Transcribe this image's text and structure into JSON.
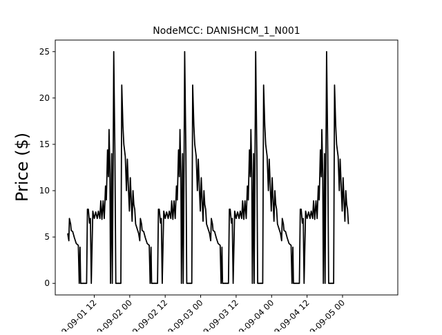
{
  "chart_data": {
    "type": "line",
    "title": "NodeMCC: DANISHCM_1_N001",
    "xlabel": "",
    "ylabel": "Price ($)",
    "x_unit": "hours from 2009-09-01 00:00",
    "xlim": [
      -1.2,
      114.7
    ],
    "ylim": [
      -1.25,
      26.25
    ],
    "yticks": [
      0,
      5,
      10,
      15,
      20,
      25
    ],
    "xticks": [
      {
        "x": 12,
        "label": "2009-09-01 12"
      },
      {
        "x": 24,
        "label": "2009-09-02 00"
      },
      {
        "x": 36,
        "label": "2009-09-02 12"
      },
      {
        "x": 48,
        "label": "2009-09-03 00"
      },
      {
        "x": 60,
        "label": "2009-09-03 12"
      },
      {
        "x": 72,
        "label": "2009-09-04 00"
      },
      {
        "x": 84,
        "label": "2009-09-04 12"
      },
      {
        "x": 96,
        "label": "2009-09-05 00"
      }
    ],
    "grid": false,
    "legend": false,
    "line_color": "#000000",
    "cycle_hours": 24,
    "cycles": 4,
    "series": [
      {
        "cycle_x": [
          3.0,
          3.4,
          3.7,
          4.0,
          4.4,
          4.8,
          5.2,
          5.6,
          6.0,
          6.4,
          6.8,
          7.2,
          7.6,
          8.0,
          8.4,
          8.8,
          9.2,
          9.6,
          10.0,
          10.4,
          10.8,
          11.2,
          11.6,
          12.0,
          12.4,
          12.8,
          13.2,
          13.6,
          14.0,
          14.4,
          14.8,
          15.2,
          15.6,
          16.0,
          16.4,
          16.8,
          17.2,
          17.6,
          18.0,
          18.4,
          18.8,
          19.2,
          19.6,
          20.0,
          20.4,
          20.8,
          21.2,
          21.6,
          22.0,
          22.4,
          22.8,
          23.2,
          23.6,
          24.0,
          24.4,
          24.8,
          25.2,
          25.6,
          26.0,
          26.4,
          26.8,
          27.2,
          27.6,
          28.0,
          28.4,
          28.8,
          29.2,
          29.6,
          30.0,
          30.4,
          30.8,
          31.2,
          31.6,
          32.0,
          32.4,
          32.8,
          33.2,
          33.6,
          34.0,
          34.4,
          34.8,
          35.2,
          35.6,
          36.0,
          36.4,
          36.8,
          37.2,
          37.6,
          38.0,
          38.4,
          38.8,
          39.2,
          39.6,
          40.0,
          40.4,
          40.8,
          41.2,
          41.6,
          42.0,
          42.4,
          42.8,
          43.2,
          43.6,
          44.0,
          44.4,
          44.8,
          45.2,
          45.6,
          46.0,
          46.4,
          46.8,
          47.2,
          47.6,
          48.0,
          48.4,
          48.8,
          49.2,
          49.6,
          50.0,
          50.4,
          50.8,
          51.2,
          51.6,
          52.0,
          52.4,
          52.8,
          53.2,
          53.6,
          54.0,
          54.4,
          54.8,
          55.2,
          55.6,
          56.0,
          56.4,
          56.8,
          57.2,
          57.6,
          58.0,
          58.4,
          58.8,
          59.2,
          59.6,
          60.0,
          60.4,
          60.8,
          61.2,
          61.6,
          62.0,
          62.4,
          62.8,
          63.2,
          63.6,
          64.0,
          64.4,
          64.8,
          65.2,
          65.6,
          66.0,
          66.4,
          66.8,
          67.2,
          67.6,
          68.0,
          68.4,
          68.8,
          69.2,
          69.6,
          70.0,
          70.4,
          70.8,
          71.2,
          71.6,
          72.0,
          72.4,
          72.8,
          73.2,
          73.6,
          74.0,
          74.4,
          74.8,
          75.2,
          75.6,
          76.0,
          76.4,
          76.8,
          77.2,
          77.6,
          78.0,
          78.4,
          78.8,
          79.2,
          79.6,
          80.0,
          80.4,
          80.8,
          81.2,
          81.6,
          82.0,
          82.4,
          82.8,
          83.2,
          83.6,
          84.0,
          84.4,
          84.8,
          85.2,
          85.6,
          86.0,
          86.4,
          86.8,
          87.2,
          87.6,
          88.0,
          88.4,
          88.8,
          89.2,
          89.6,
          90.0,
          90.4,
          90.8,
          91.2,
          91.6,
          92.0,
          92.4,
          92.8,
          93.2,
          93.6,
          94.0,
          94.4,
          94.8,
          95.2,
          95.6,
          96.0,
          96.4,
          96.8,
          97.2,
          97.6,
          98.0,
          98.4,
          98.8,
          99.2,
          99.6,
          100.0,
          100.4,
          100.8,
          101.2,
          101.6,
          102.0,
          102.4,
          102.8,
          103.2,
          103.6,
          104.0,
          104.4,
          104.8,
          105.2,
          105.6,
          106.0,
          106.4,
          106.8,
          107.2,
          107.6,
          108.0,
          108.4,
          108.8,
          109.2,
          109.6,
          110.0,
          110.4,
          110.8,
          111.2,
          111.6,
          112.0
        ],
        "profile": [
          {
            "h": 3.0,
            "v": 5.4
          },
          {
            "h": 3.4,
            "v": 4.6
          },
          {
            "h": 3.6,
            "v": 7.0
          },
          {
            "h": 4.0,
            "v": 6.4
          },
          {
            "h": 4.2,
            "v": 5.7
          },
          {
            "h": 4.7,
            "v": 5.6
          },
          {
            "h": 5.3,
            "v": 4.9
          },
          {
            "h": 5.9,
            "v": 4.3
          },
          {
            "h": 6.6,
            "v": 4.1
          },
          {
            "h": 6.9,
            "v": 0.0
          },
          {
            "h": 7.2,
            "v": 3.9
          },
          {
            "h": 7.4,
            "v": 0.0
          },
          {
            "h": 9.4,
            "v": 0.0
          },
          {
            "h": 9.7,
            "v": 8.0
          },
          {
            "h": 10.0,
            "v": 8.0
          },
          {
            "h": 10.4,
            "v": 6.5
          },
          {
            "h": 10.7,
            "v": 7.0
          },
          {
            "h": 11.0,
            "v": 0.0
          },
          {
            "h": 11.5,
            "v": 7.8
          },
          {
            "h": 12.0,
            "v": 7.0
          },
          {
            "h": 12.5,
            "v": 7.7
          },
          {
            "h": 13.0,
            "v": 7.0
          },
          {
            "h": 13.4,
            "v": 7.8
          },
          {
            "h": 13.9,
            "v": 7.0
          },
          {
            "h": 14.2,
            "v": 8.9
          },
          {
            "h": 14.6,
            "v": 6.9
          },
          {
            "h": 15.0,
            "v": 8.9
          },
          {
            "h": 15.4,
            "v": 7.0
          },
          {
            "h": 15.8,
            "v": 10.5
          },
          {
            "h": 16.1,
            "v": 9.0
          },
          {
            "h": 16.5,
            "v": 14.4
          },
          {
            "h": 16.8,
            "v": 11.5
          },
          {
            "h": 17.0,
            "v": 16.6
          },
          {
            "h": 17.3,
            "v": 11.8
          },
          {
            "h": 17.5,
            "v": 0.0
          },
          {
            "h": 17.9,
            "v": 14.0
          },
          {
            "h": 18.1,
            "v": 0.0
          },
          {
            "h": 18.4,
            "v": 14.0
          },
          {
            "h": 18.6,
            "v": 25.0
          },
          {
            "h": 19.0,
            "v": 14.0
          },
          {
            "h": 19.3,
            "v": 0.0
          },
          {
            "h": 21.0,
            "v": 0.0
          },
          {
            "h": 21.3,
            "v": 21.4
          },
          {
            "h": 21.7,
            "v": 17.0
          },
          {
            "h": 22.0,
            "v": 15.0
          },
          {
            "h": 22.5,
            "v": 13.7
          },
          {
            "h": 22.9,
            "v": 10.0
          },
          {
            "h": 23.2,
            "v": 13.4
          },
          {
            "h": 23.6,
            "v": 10.0
          },
          {
            "h": 23.9,
            "v": 7.8
          },
          {
            "h": 24.2,
            "v": 11.4
          },
          {
            "h": 24.5,
            "v": 9.0
          },
          {
            "h": 24.8,
            "v": 6.7
          },
          {
            "h": 25.1,
            "v": 10.0
          },
          {
            "h": 25.4,
            "v": 8.5
          },
          {
            "h": 25.7,
            "v": 8.0
          },
          {
            "h": 26.0,
            "v": 6.4
          }
        ]
      }
    ]
  }
}
